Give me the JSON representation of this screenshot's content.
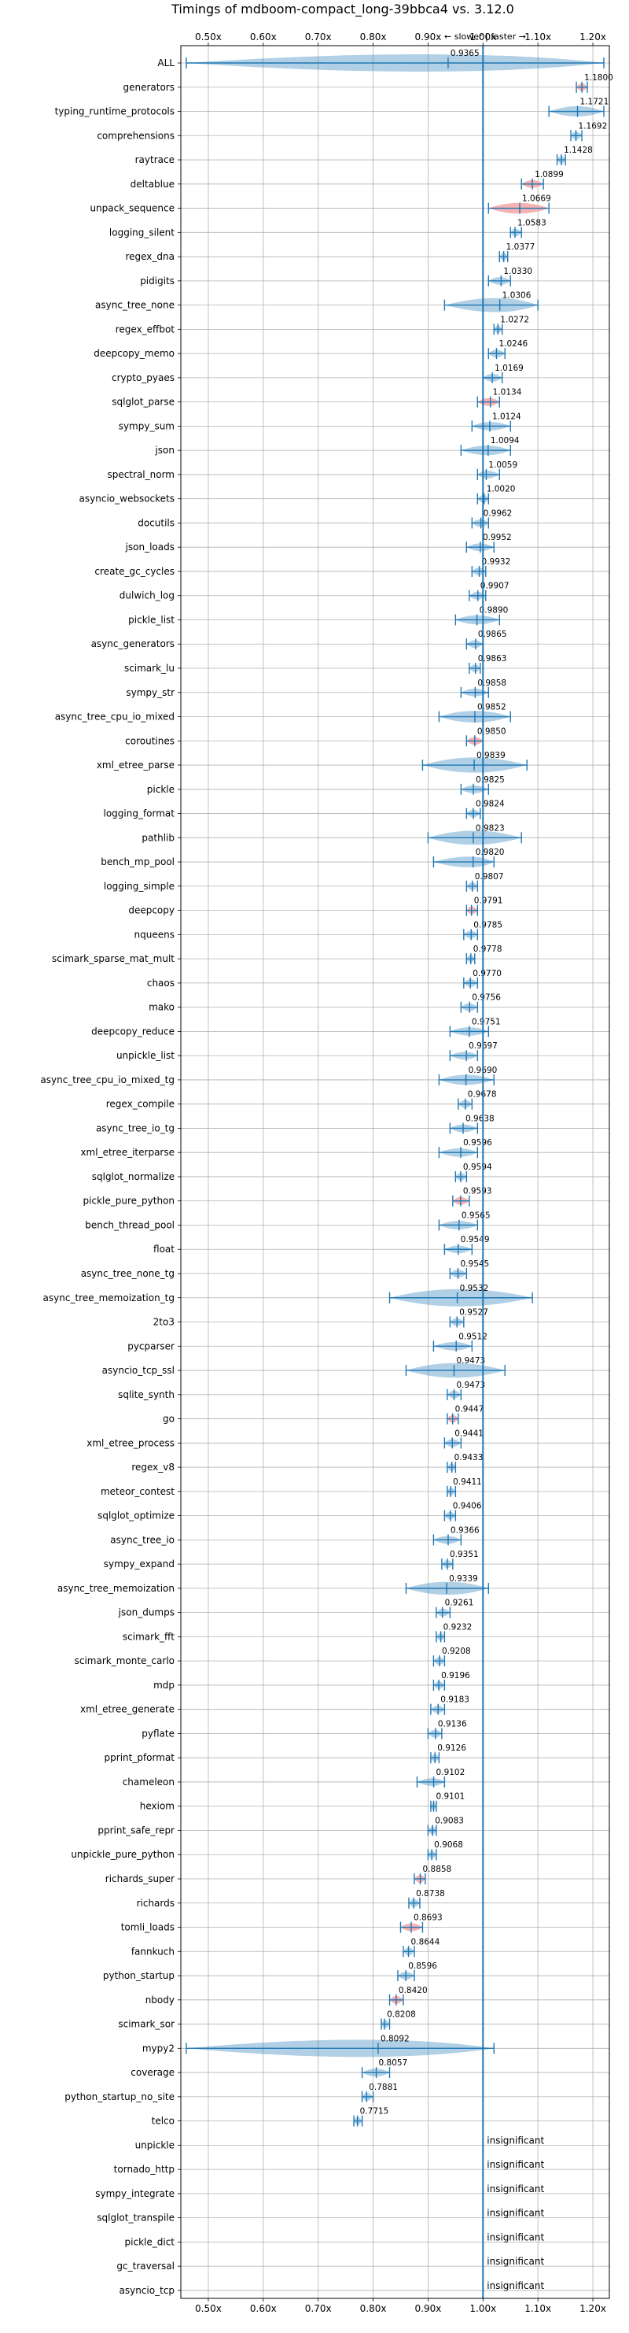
{
  "chart_data": {
    "type": "violin",
    "title": "Timings of mdboom-compact_long-39bbca4 vs. 3.12.0",
    "axis_annotation": "← slower | faster →",
    "xlim": [
      0.45,
      1.23
    ],
    "x_ticks": [
      0.5,
      0.6,
      0.7,
      0.8,
      0.9,
      1.0,
      1.1,
      1.2
    ],
    "x_tick_labels": [
      "0.50x",
      "0.60x",
      "0.70x",
      "0.80x",
      "0.90x",
      "1.00x",
      "1.10x",
      "1.20x"
    ],
    "reference_line": 1.0,
    "grid": true,
    "colors": {
      "violin": "#1f77b4",
      "significant_slower_highlight": "#f4a4a4",
      "reference_line": "#1f77b4",
      "grid": "#b0b0b0"
    },
    "benchmarks": [
      {
        "name": "ALL",
        "value": 0.9365,
        "label": "0.9365",
        "min": 0.46,
        "max": 1.22,
        "q1": 0.94,
        "q3": 1.03
      },
      {
        "name": "generators",
        "value": 1.18,
        "label": "1.1800",
        "min": 1.17,
        "max": 1.19
      },
      {
        "name": "typing_runtime_protocols",
        "value": 1.1721,
        "label": "1.1721",
        "min": 1.12,
        "max": 1.22
      },
      {
        "name": "comprehensions",
        "value": 1.1692,
        "label": "1.1692",
        "min": 1.16,
        "max": 1.18
      },
      {
        "name": "raytrace",
        "value": 1.1428,
        "label": "1.1428",
        "min": 1.135,
        "max": 1.15
      },
      {
        "name": "deltablue",
        "value": 1.0899,
        "label": "1.0899",
        "min": 1.07,
        "max": 1.11
      },
      {
        "name": "unpack_sequence",
        "value": 1.0669,
        "label": "1.0669",
        "min": 1.01,
        "max": 1.12
      },
      {
        "name": "logging_silent",
        "value": 1.0583,
        "label": "1.0583",
        "min": 1.05,
        "max": 1.07
      },
      {
        "name": "regex_dna",
        "value": 1.0377,
        "label": "1.0377",
        "min": 1.03,
        "max": 1.045
      },
      {
        "name": "pidigits",
        "value": 1.033,
        "label": "1.0330",
        "min": 1.01,
        "max": 1.05
      },
      {
        "name": "async_tree_none",
        "value": 1.0306,
        "label": "1.0306",
        "min": 0.93,
        "max": 1.1
      },
      {
        "name": "regex_effbot",
        "value": 1.0272,
        "label": "1.0272",
        "min": 1.02,
        "max": 1.035
      },
      {
        "name": "deepcopy_memo",
        "value": 1.0246,
        "label": "1.0246",
        "min": 1.01,
        "max": 1.04
      },
      {
        "name": "crypto_pyaes",
        "value": 1.0169,
        "label": "1.0169",
        "min": 1.0,
        "max": 1.035
      },
      {
        "name": "sqlglot_parse",
        "value": 1.0134,
        "label": "1.0134",
        "min": 0.99,
        "max": 1.03
      },
      {
        "name": "sympy_sum",
        "value": 1.0124,
        "label": "1.0124",
        "min": 0.98,
        "max": 1.05
      },
      {
        "name": "json",
        "value": 1.0094,
        "label": "1.0094",
        "min": 0.96,
        "max": 1.05
      },
      {
        "name": "spectral_norm",
        "value": 1.0059,
        "label": "1.0059",
        "min": 0.99,
        "max": 1.03
      },
      {
        "name": "asyncio_websockets",
        "value": 1.002,
        "label": "1.0020",
        "min": 0.99,
        "max": 1.01
      },
      {
        "name": "docutils",
        "value": 0.9962,
        "label": "0.9962",
        "min": 0.98,
        "max": 1.01
      },
      {
        "name": "json_loads",
        "value": 0.9952,
        "label": "0.9952",
        "min": 0.97,
        "max": 1.02
      },
      {
        "name": "create_gc_cycles",
        "value": 0.9932,
        "label": "0.9932",
        "min": 0.98,
        "max": 1.005
      },
      {
        "name": "dulwich_log",
        "value": 0.9907,
        "label": "0.9907",
        "min": 0.975,
        "max": 1.005
      },
      {
        "name": "pickle_list",
        "value": 0.989,
        "label": "0.9890",
        "min": 0.95,
        "max": 1.03
      },
      {
        "name": "async_generators",
        "value": 0.9865,
        "label": "0.9865",
        "min": 0.97,
        "max": 1.0
      },
      {
        "name": "scimark_lu",
        "value": 0.9863,
        "label": "0.9863",
        "min": 0.975,
        "max": 0.995
      },
      {
        "name": "sympy_str",
        "value": 0.9858,
        "label": "0.9858",
        "min": 0.96,
        "max": 1.01
      },
      {
        "name": "async_tree_cpu_io_mixed",
        "value": 0.9852,
        "label": "0.9852",
        "min": 0.92,
        "max": 1.05
      },
      {
        "name": "coroutines",
        "value": 0.985,
        "label": "0.9850",
        "min": 0.97,
        "max": 1.0
      },
      {
        "name": "xml_etree_parse",
        "value": 0.9839,
        "label": "0.9839",
        "min": 0.89,
        "max": 1.08
      },
      {
        "name": "pickle",
        "value": 0.9825,
        "label": "0.9825",
        "min": 0.96,
        "max": 1.01
      },
      {
        "name": "logging_format",
        "value": 0.9824,
        "label": "0.9824",
        "min": 0.97,
        "max": 0.995
      },
      {
        "name": "pathlib",
        "value": 0.9823,
        "label": "0.9823",
        "min": 0.9,
        "max": 1.07
      },
      {
        "name": "bench_mp_pool",
        "value": 0.982,
        "label": "0.9820",
        "min": 0.91,
        "max": 1.02
      },
      {
        "name": "logging_simple",
        "value": 0.9807,
        "label": "0.9807",
        "min": 0.97,
        "max": 0.99
      },
      {
        "name": "deepcopy",
        "value": 0.9791,
        "label": "0.9791",
        "min": 0.97,
        "max": 0.99
      },
      {
        "name": "nqueens",
        "value": 0.9785,
        "label": "0.9785",
        "min": 0.965,
        "max": 0.99
      },
      {
        "name": "scimark_sparse_mat_mult",
        "value": 0.9778,
        "label": "0.9778",
        "min": 0.97,
        "max": 0.985
      },
      {
        "name": "chaos",
        "value": 0.977,
        "label": "0.9770",
        "min": 0.965,
        "max": 0.99
      },
      {
        "name": "mako",
        "value": 0.9756,
        "label": "0.9756",
        "min": 0.96,
        "max": 0.99
      },
      {
        "name": "deepcopy_reduce",
        "value": 0.9751,
        "label": "0.9751",
        "min": 0.94,
        "max": 1.01
      },
      {
        "name": "unpickle_list",
        "value": 0.9697,
        "label": "0.9697",
        "min": 0.94,
        "max": 0.99
      },
      {
        "name": "async_tree_cpu_io_mixed_tg",
        "value": 0.969,
        "label": "0.9690",
        "min": 0.92,
        "max": 1.02
      },
      {
        "name": "regex_compile",
        "value": 0.9678,
        "label": "0.9678",
        "min": 0.955,
        "max": 0.98
      },
      {
        "name": "async_tree_io_tg",
        "value": 0.9638,
        "label": "0.9638",
        "min": 0.94,
        "max": 0.99
      },
      {
        "name": "xml_etree_iterparse",
        "value": 0.9596,
        "label": "0.9596",
        "min": 0.92,
        "max": 0.99
      },
      {
        "name": "sqlglot_normalize",
        "value": 0.9594,
        "label": "0.9594",
        "min": 0.95,
        "max": 0.97
      },
      {
        "name": "pickle_pure_python",
        "value": 0.9593,
        "label": "0.9593",
        "min": 0.945,
        "max": 0.975
      },
      {
        "name": "bench_thread_pool",
        "value": 0.9565,
        "label": "0.9565",
        "min": 0.92,
        "max": 0.99
      },
      {
        "name": "float",
        "value": 0.9549,
        "label": "0.9549",
        "min": 0.93,
        "max": 0.98
      },
      {
        "name": "async_tree_none_tg",
        "value": 0.9545,
        "label": "0.9545",
        "min": 0.94,
        "max": 0.97
      },
      {
        "name": "async_tree_memoization_tg",
        "value": 0.9532,
        "label": "0.9532",
        "min": 0.83,
        "max": 1.09
      },
      {
        "name": "2to3",
        "value": 0.9527,
        "label": "0.9527",
        "min": 0.94,
        "max": 0.965
      },
      {
        "name": "pycparser",
        "value": 0.9512,
        "label": "0.9512",
        "min": 0.91,
        "max": 0.98
      },
      {
        "name": "asyncio_tcp_ssl",
        "value": 0.9473,
        "label": "0.9473",
        "min": 0.86,
        "max": 1.04
      },
      {
        "name": "sqlite_synth",
        "value": 0.9473,
        "label": "0.9473",
        "min": 0.935,
        "max": 0.96
      },
      {
        "name": "go",
        "value": 0.9447,
        "label": "0.9447",
        "min": 0.935,
        "max": 0.955
      },
      {
        "name": "xml_etree_process",
        "value": 0.9441,
        "label": "0.9441",
        "min": 0.93,
        "max": 0.96
      },
      {
        "name": "regex_v8",
        "value": 0.9433,
        "label": "0.9433",
        "min": 0.935,
        "max": 0.95
      },
      {
        "name": "meteor_contest",
        "value": 0.9411,
        "label": "0.9411",
        "min": 0.935,
        "max": 0.95
      },
      {
        "name": "sqlglot_optimize",
        "value": 0.9406,
        "label": "0.9406",
        "min": 0.93,
        "max": 0.95
      },
      {
        "name": "async_tree_io",
        "value": 0.9366,
        "label": "0.9366",
        "min": 0.91,
        "max": 0.96
      },
      {
        "name": "sympy_expand",
        "value": 0.9351,
        "label": "0.9351",
        "min": 0.925,
        "max": 0.945
      },
      {
        "name": "async_tree_memoization",
        "value": 0.9339,
        "label": "0.9339",
        "min": 0.86,
        "max": 1.01
      },
      {
        "name": "json_dumps",
        "value": 0.9261,
        "label": "0.9261",
        "min": 0.915,
        "max": 0.94
      },
      {
        "name": "scimark_fft",
        "value": 0.9232,
        "label": "0.9232",
        "min": 0.915,
        "max": 0.93
      },
      {
        "name": "scimark_monte_carlo",
        "value": 0.9208,
        "label": "0.9208",
        "min": 0.91,
        "max": 0.93
      },
      {
        "name": "mdp",
        "value": 0.9196,
        "label": "0.9196",
        "min": 0.91,
        "max": 0.93
      },
      {
        "name": "xml_etree_generate",
        "value": 0.9183,
        "label": "0.9183",
        "min": 0.905,
        "max": 0.93
      },
      {
        "name": "pyflate",
        "value": 0.9136,
        "label": "0.9136",
        "min": 0.9,
        "max": 0.925
      },
      {
        "name": "pprint_pformat",
        "value": 0.9126,
        "label": "0.9126",
        "min": 0.905,
        "max": 0.92
      },
      {
        "name": "chameleon",
        "value": 0.9102,
        "label": "0.9102",
        "min": 0.88,
        "max": 0.93
      },
      {
        "name": "hexiom",
        "value": 0.9101,
        "label": "0.9101",
        "min": 0.905,
        "max": 0.915
      },
      {
        "name": "pprint_safe_repr",
        "value": 0.9083,
        "label": "0.9083",
        "min": 0.9,
        "max": 0.915
      },
      {
        "name": "unpickle_pure_python",
        "value": 0.9068,
        "label": "0.9068",
        "min": 0.9,
        "max": 0.915
      },
      {
        "name": "richards_super",
        "value": 0.8858,
        "label": "0.8858",
        "min": 0.875,
        "max": 0.895
      },
      {
        "name": "richards",
        "value": 0.8738,
        "label": "0.8738",
        "min": 0.865,
        "max": 0.885
      },
      {
        "name": "tomli_loads",
        "value": 0.8693,
        "label": "0.8693",
        "min": 0.85,
        "max": 0.89
      },
      {
        "name": "fannkuch",
        "value": 0.8644,
        "label": "0.8644",
        "min": 0.855,
        "max": 0.875
      },
      {
        "name": "python_startup",
        "value": 0.8596,
        "label": "0.8596",
        "min": 0.845,
        "max": 0.875
      },
      {
        "name": "nbody",
        "value": 0.842,
        "label": "0.8420",
        "min": 0.83,
        "max": 0.855
      },
      {
        "name": "scimark_sor",
        "value": 0.8208,
        "label": "0.8208",
        "min": 0.815,
        "max": 0.83
      },
      {
        "name": "mypy2",
        "value": 0.8092,
        "label": "0.8092",
        "min": 0.46,
        "max": 1.02
      },
      {
        "name": "coverage",
        "value": 0.8057,
        "label": "0.8057",
        "min": 0.78,
        "max": 0.83
      },
      {
        "name": "python_startup_no_site",
        "value": 0.7881,
        "label": "0.7881",
        "min": 0.78,
        "max": 0.8
      },
      {
        "name": "telco",
        "value": 0.7715,
        "label": "0.7715",
        "min": 0.765,
        "max": 0.78
      },
      {
        "name": "unpickle",
        "label": "insignificant"
      },
      {
        "name": "tornado_http",
        "label": "insignificant"
      },
      {
        "name": "sympy_integrate",
        "label": "insignificant"
      },
      {
        "name": "sqlglot_transpile",
        "label": "insignificant"
      },
      {
        "name": "pickle_dict",
        "label": "insignificant"
      },
      {
        "name": "gc_traversal",
        "label": "insignificant"
      },
      {
        "name": "asyncio_tcp",
        "label": "insignificant"
      }
    ],
    "highlighted": [
      "generators",
      "deltablue",
      "unpack_sequence",
      "sqlglot_parse",
      "coroutines",
      "deepcopy",
      "pickle_pure_python",
      "go",
      "richards_super",
      "tomli_loads",
      "nbody"
    ]
  }
}
